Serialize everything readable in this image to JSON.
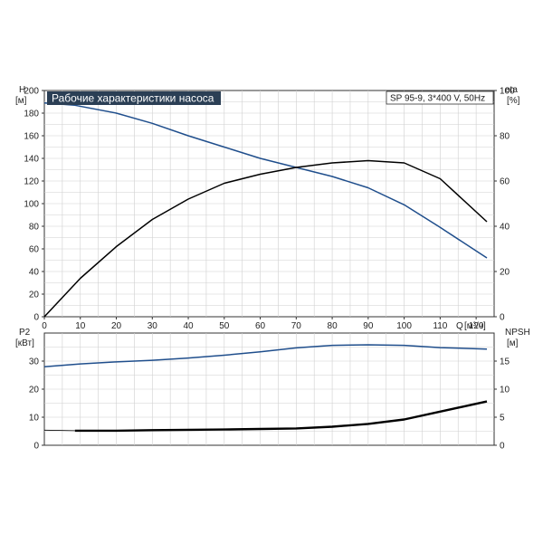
{
  "colors": {
    "blue": "#1f4e8c",
    "black": "#000000",
    "grid": "#d0d0d0",
    "axis": "#333333",
    "title_bg": "#2b3f55"
  },
  "chart_data": [
    {
      "type": "line",
      "title": "Рабочие характеристики насоса",
      "model": "SP 95-9, 3*400 V, 50Hz",
      "left_axis": {
        "label": "H",
        "unit": "[м]",
        "lim": [
          0,
          200
        ],
        "ticks": [
          "0",
          "20",
          "40",
          "60",
          "80",
          "100",
          "120",
          "140",
          "160",
          "180",
          "200"
        ]
      },
      "right_axis": {
        "label": "eta",
        "unit": "[%]",
        "lim": [
          0,
          100
        ],
        "ticks": [
          "0",
          "20",
          "40",
          "60",
          "80",
          "100"
        ]
      },
      "x_axis": {
        "label": "Q",
        "unit": "[м³/ч]",
        "lim": [
          0,
          125
        ],
        "ticks": [
          "0",
          "10",
          "20",
          "30",
          "40",
          "50",
          "60",
          "70",
          "80",
          "90",
          "100",
          "110",
          "120"
        ]
      },
      "grid": true,
      "series": [
        {
          "color": "blue",
          "axis": "left",
          "x": [
            0,
            8.5,
            20,
            30,
            40,
            50,
            60,
            70,
            80,
            90,
            100,
            110,
            123
          ],
          "y": [
            189,
            187,
            180,
            171,
            160,
            150,
            140,
            132,
            124,
            114,
            99,
            79,
            52
          ]
        },
        {
          "color": "black",
          "axis": "right",
          "x": [
            0,
            10,
            20,
            30,
            40,
            50,
            60,
            70,
            80,
            90,
            100,
            110,
            123
          ],
          "y": [
            0,
            17,
            31,
            43,
            52,
            59,
            63,
            66,
            68,
            69,
            68,
            61,
            42
          ]
        }
      ]
    },
    {
      "type": "line",
      "left_axis": {
        "label": "P2",
        "unit": "[кВт]",
        "lim": [
          0,
          40
        ],
        "ticks": [
          "0",
          "10",
          "20",
          "30"
        ]
      },
      "right_axis": {
        "label": "NPSH",
        "unit": "[м]",
        "lim": [
          0,
          20
        ],
        "ticks": [
          "0",
          "5",
          "10",
          "15"
        ]
      },
      "x_axis": {
        "lim": [
          0,
          125
        ]
      },
      "grid": true,
      "series": [
        {
          "color": "blue",
          "axis": "left",
          "x": [
            0,
            10,
            20,
            30,
            40,
            50,
            60,
            70,
            80,
            90,
            100,
            110,
            123
          ],
          "y": [
            28,
            29,
            29.7,
            30.3,
            31.1,
            32.1,
            33.3,
            34.7,
            35.6,
            35.8,
            35.6,
            34.8,
            34.3
          ]
        },
        {
          "color": "black",
          "axis": "right",
          "x": [
            0,
            8.5,
            20,
            30,
            40,
            50,
            60,
            70,
            80,
            90,
            100,
            110,
            123
          ],
          "y": [
            null,
            2.6,
            2.6,
            2.7,
            2.75,
            2.8,
            2.9,
            3.0,
            3.3,
            3.8,
            4.6,
            6.0,
            7.8
          ]
        }
      ]
    }
  ]
}
